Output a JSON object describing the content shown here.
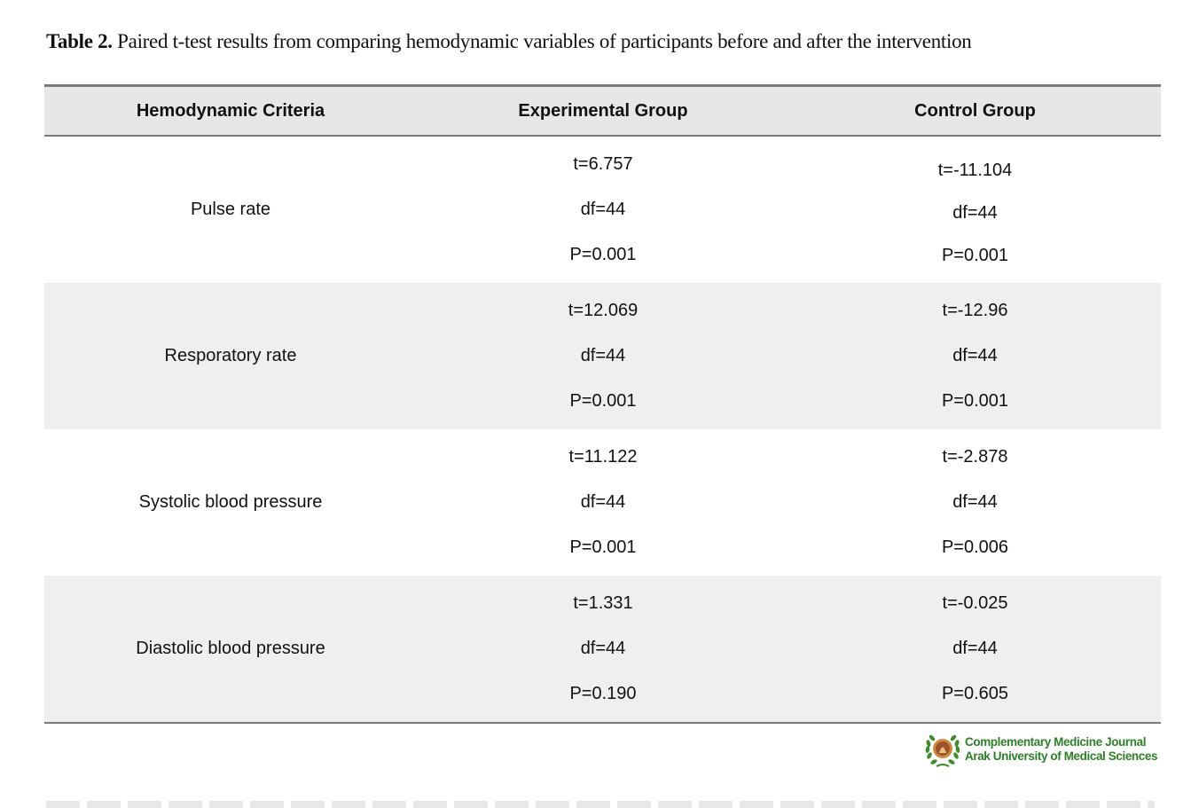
{
  "caption": {
    "label": "Table 2.",
    "text": " Paired t-test results from comparing hemodynamic variables of participants before and after the intervention"
  },
  "table": {
    "headers": [
      "Hemodynamic Criteria",
      "Experimental Group",
      "Control Group"
    ],
    "rows": [
      {
        "criteria": "Pulse rate",
        "experimental": [
          "t=6.757",
          "df=44",
          "P=0.001"
        ],
        "control": [
          "t=-11.104",
          "df=44",
          "P=0.001"
        ]
      },
      {
        "criteria": "Resporatory rate",
        "experimental": [
          "t=12.069",
          "df=44",
          "P=0.001"
        ],
        "control": [
          "t=-12.96",
          "df=44",
          "P=0.001"
        ]
      },
      {
        "criteria": "Systolic blood pressure",
        "experimental": [
          "t=11.122",
          "df=44",
          "P=0.001"
        ],
        "control": [
          "t=-2.878",
          "df=44",
          "P=0.006"
        ]
      },
      {
        "criteria": "Diastolic blood pressure",
        "experimental": [
          "t=1.331",
          "df=44",
          "P=0.190"
        ],
        "control": [
          "t=-0.025",
          "df=44",
          "P=0.605"
        ]
      }
    ]
  },
  "logo": {
    "line1": "Complementary Medicine Journal",
    "line2": "Arak University of Medical Sciences",
    "color": "#2f7d2a"
  }
}
